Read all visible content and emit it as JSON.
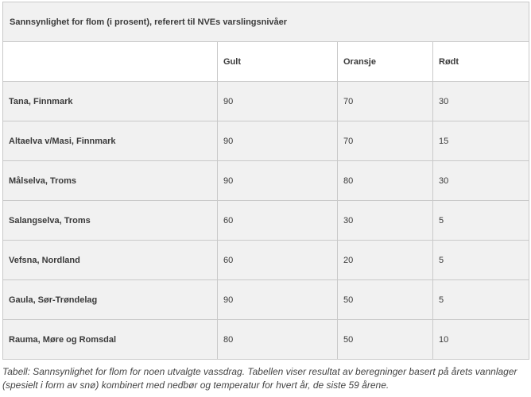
{
  "table": {
    "title": "Sannsynlighet for flom (i prosent), referert til NVEs varslingsnivåer",
    "headers": [
      "",
      "Gult",
      "Oransje",
      "Rødt"
    ],
    "rows": [
      {
        "place": "Tana, Finnmark",
        "gult": "90",
        "oransje": "70",
        "rodt": "30"
      },
      {
        "place": "Altaelva v/Masi, Finnmark",
        "gult": "90",
        "oransje": "70",
        "rodt": "15"
      },
      {
        "place": "Målselva, Troms",
        "gult": "90",
        "oransje": "80",
        "rodt": "30"
      },
      {
        "place": "Salangselva, Troms",
        "gult": "60",
        "oransje": "30",
        "rodt": "5"
      },
      {
        "place": "Vefsna, Nordland",
        "gult": "60",
        "oransje": "20",
        "rodt": "5"
      },
      {
        "place": "Gaula, Sør-Trøndelag",
        "gult": "90",
        "oransje": "50",
        "rodt": "5"
      },
      {
        "place": "Rauma, Møre og Romsdal",
        "gult": "80",
        "oransje": "50",
        "rodt": "10"
      }
    ]
  },
  "caption": "Tabell: Sannsynlighet for flom for noen utvalgte vassdrag. Tabellen viser resultat av beregninger basert på årets vannlager (spesielt i form av snø) kombinert med nedbør og temperatur for hvert år, de siste 59 årene."
}
